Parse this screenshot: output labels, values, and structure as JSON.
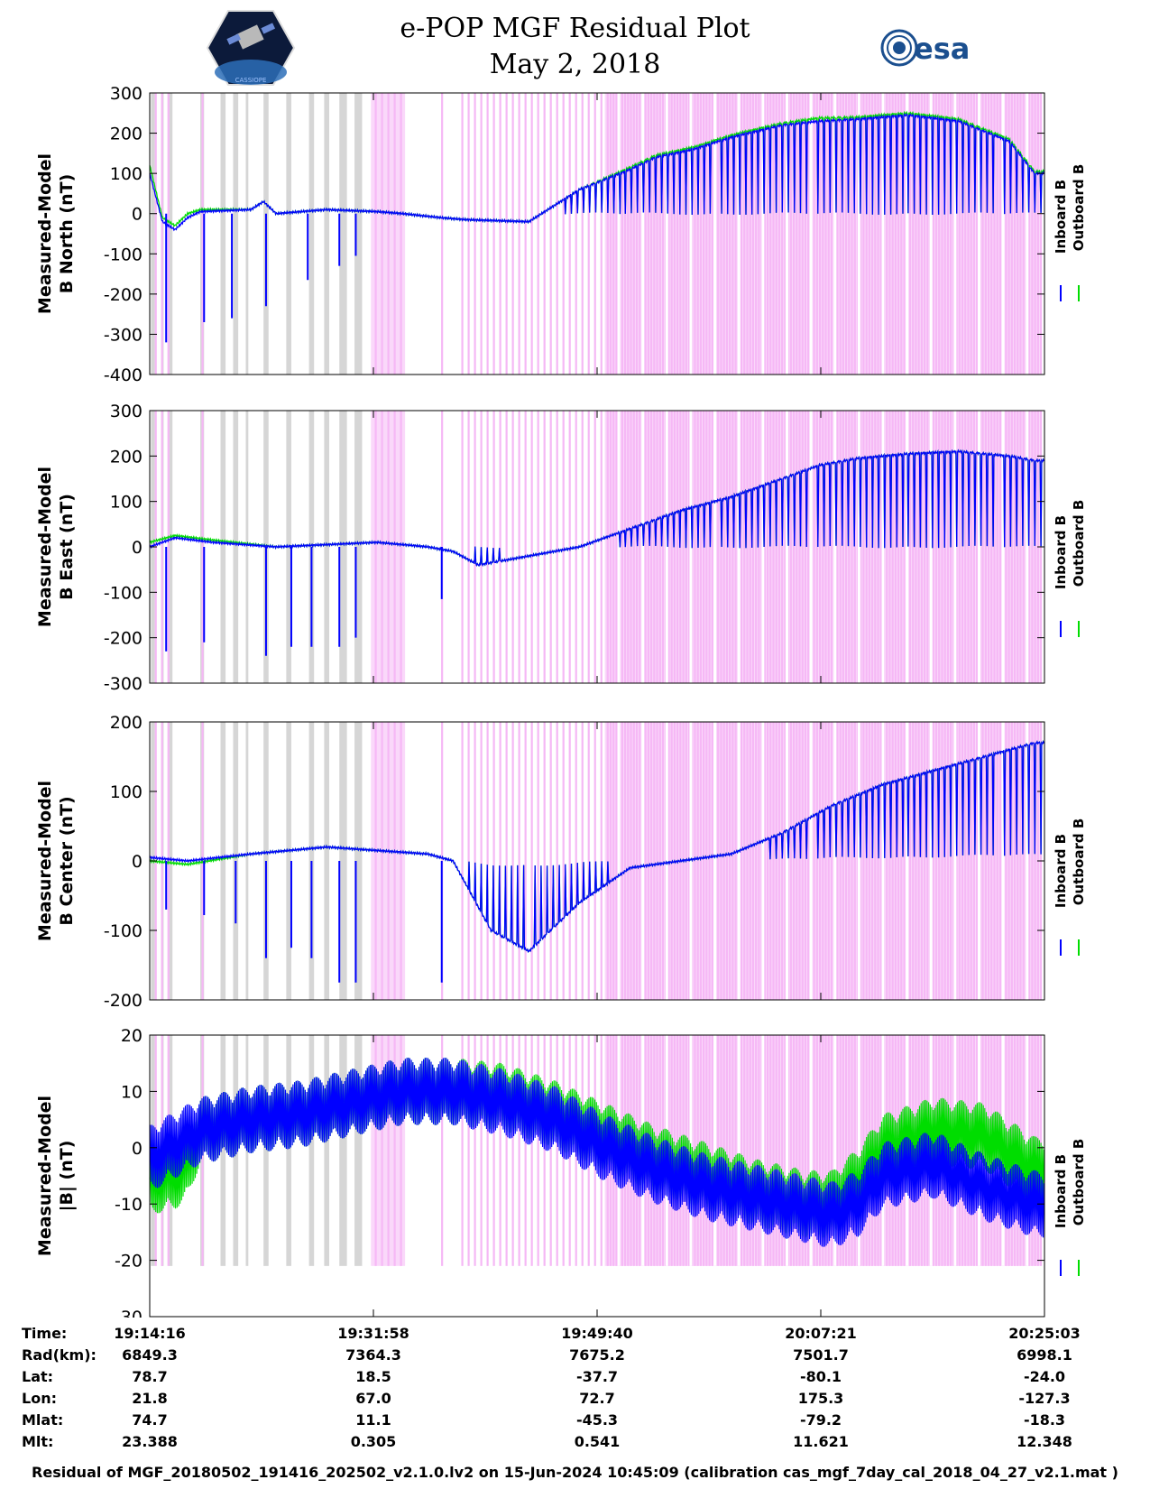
{
  "header": {
    "title": "e-POP MGF Residual Plot",
    "date": "May 2, 2018",
    "logo_left_text": "CASSIOPE",
    "logo_right_text": "esa"
  },
  "colors": {
    "inboard": "#0000ff",
    "outboard": "#00dd00",
    "pink_band": "#f5b8f5",
    "gray_band": "#d6d6d6"
  },
  "legend": {
    "inboard": "Inboard B",
    "outboard": "Outboard B"
  },
  "chart_data": [
    {
      "type": "line",
      "ylabel": [
        "Measured-Model",
        "B North (nT)"
      ],
      "ylim": [
        -400,
        300
      ],
      "yticks": [
        300,
        200,
        100,
        0,
        -100,
        -200,
        -300,
        -400
      ],
      "xlabel": "",
      "x_ticks": [
        "19:14:16",
        "19:31:58",
        "19:49:40",
        "20:07:21",
        "20:25:03"
      ],
      "series": [
        {
          "name": "Inboard B",
          "x_minutes": [
            0,
            1,
            2,
            3,
            4,
            8,
            9,
            10,
            14,
            18,
            20,
            23,
            25,
            30,
            34,
            38,
            40,
            43,
            46,
            50,
            53,
            56,
            60,
            64,
            68,
            70
          ],
          "values": [
            100,
            -20,
            -40,
            -10,
            5,
            10,
            30,
            0,
            10,
            5,
            0,
            -10,
            -15,
            -20,
            60,
            110,
            140,
            160,
            190,
            220,
            230,
            235,
            245,
            230,
            180,
            100
          ]
        },
        {
          "name": "Outboard B",
          "x_minutes": [
            0,
            1,
            2,
            3,
            4,
            8,
            9,
            10,
            14,
            18,
            20,
            23,
            25,
            30,
            34,
            38,
            40,
            43,
            46,
            50,
            53,
            56,
            60,
            64,
            68,
            70
          ],
          "values": [
            120,
            -10,
            -30,
            0,
            10,
            10,
            30,
            0,
            10,
            5,
            0,
            -10,
            -15,
            -20,
            60,
            115,
            145,
            165,
            195,
            225,
            238,
            240,
            250,
            235,
            185,
            105
          ]
        }
      ],
      "dips": [
        {
          "x_minutes": 1.3,
          "value": -320
        },
        {
          "x_minutes": 4.3,
          "value": -270
        },
        {
          "x_minutes": 6.5,
          "value": -260
        },
        {
          "x_minutes": 9.2,
          "value": -230
        },
        {
          "x_minutes": 12.5,
          "value": -165
        },
        {
          "x_minutes": 15,
          "value": -130
        },
        {
          "x_minutes": 16.3,
          "value": -105
        }
      ]
    },
    {
      "type": "line",
      "ylabel": [
        "Measured-Model",
        "B East (nT)"
      ],
      "ylim": [
        -300,
        300
      ],
      "yticks": [
        300,
        200,
        100,
        0,
        -100,
        -200,
        -300
      ],
      "xlabel": "",
      "x_ticks": [
        "19:14:16",
        "19:31:58",
        "19:49:40",
        "20:07:21",
        "20:25:03"
      ],
      "series": [
        {
          "name": "Inboard B",
          "x_minutes": [
            0,
            2,
            5,
            10,
            18,
            22,
            24,
            26,
            30,
            34,
            38,
            42,
            46,
            50,
            53,
            56,
            60,
            64,
            68,
            70
          ],
          "values": [
            0,
            20,
            10,
            0,
            10,
            0,
            -10,
            -40,
            -20,
            0,
            40,
            80,
            110,
            150,
            180,
            195,
            205,
            210,
            200,
            190
          ]
        },
        {
          "name": "Outboard B",
          "x_minutes": [
            0,
            2,
            5,
            10,
            18,
            22,
            24,
            26,
            30,
            34,
            38,
            42,
            46,
            50,
            53,
            56,
            60,
            64,
            68,
            70
          ],
          "values": [
            10,
            25,
            15,
            0,
            10,
            0,
            -10,
            -40,
            -20,
            0,
            40,
            80,
            110,
            150,
            180,
            195,
            205,
            210,
            200,
            190
          ]
        }
      ],
      "dips": [
        {
          "x_minutes": 1.3,
          "value": -230
        },
        {
          "x_minutes": 4.3,
          "value": -210
        },
        {
          "x_minutes": 9.2,
          "value": -240
        },
        {
          "x_minutes": 11.2,
          "value": -220
        },
        {
          "x_minutes": 12.8,
          "value": -220
        },
        {
          "x_minutes": 15,
          "value": -220
        },
        {
          "x_minutes": 16.3,
          "value": -200
        },
        {
          "x_minutes": 23.1,
          "value": -115
        }
      ]
    },
    {
      "type": "line",
      "ylabel": [
        "Measured-Model",
        "B Center (nT)"
      ],
      "ylim": [
        -200,
        200
      ],
      "yticks": [
        200,
        100,
        0,
        -100,
        -200
      ],
      "xlabel": "",
      "x_ticks": [
        "19:14:16",
        "19:31:58",
        "19:49:40",
        "20:07:21",
        "20:25:03"
      ],
      "series": [
        {
          "name": "Inboard B",
          "x_minutes": [
            0,
            3,
            8,
            14,
            18,
            22,
            24,
            27,
            30,
            34,
            38,
            42,
            46,
            50,
            54,
            58,
            62,
            66,
            70
          ],
          "values": [
            5,
            0,
            10,
            20,
            15,
            10,
            0,
            -100,
            -130,
            -60,
            -10,
            0,
            10,
            40,
            80,
            110,
            130,
            150,
            170
          ]
        },
        {
          "name": "Outboard B",
          "x_minutes": [
            0,
            3,
            8,
            14,
            18,
            22,
            24,
            27,
            30,
            34,
            38,
            42,
            46,
            50,
            54,
            58,
            62,
            66,
            70
          ],
          "values": [
            0,
            -5,
            10,
            20,
            15,
            10,
            0,
            -100,
            -130,
            -60,
            -10,
            0,
            10,
            40,
            80,
            110,
            130,
            150,
            170
          ]
        }
      ],
      "dips": [
        {
          "x_minutes": 1.3,
          "value": -70
        },
        {
          "x_minutes": 4.3,
          "value": -78
        },
        {
          "x_minutes": 6.8,
          "value": -90
        },
        {
          "x_minutes": 9.2,
          "value": -140
        },
        {
          "x_minutes": 11.2,
          "value": -125
        },
        {
          "x_minutes": 12.8,
          "value": -140
        },
        {
          "x_minutes": 15,
          "value": -175
        },
        {
          "x_minutes": 16.3,
          "value": -175
        },
        {
          "x_minutes": 23.1,
          "value": -175
        }
      ]
    },
    {
      "type": "line",
      "ylabel": [
        "Measured-Model",
        "|B| (nT)"
      ],
      "ylim": [
        -30,
        20
      ],
      "yticks": [
        20,
        10,
        0,
        -10,
        -20,
        -30
      ],
      "xlabel": "",
      "x_ticks": [
        "19:14:16",
        "19:31:58",
        "19:49:40",
        "20:07:21",
        "20:25:03"
      ],
      "series": [
        {
          "name": "Inboard B",
          "x_minutes": [
            0,
            4,
            8,
            12,
            16,
            20,
            24,
            28,
            32,
            36,
            40,
            44,
            48,
            52,
            54,
            56,
            58,
            62,
            66,
            70
          ],
          "values": [
            -2,
            3,
            5,
            6,
            8,
            10,
            10,
            8,
            5,
            0,
            -4,
            -7,
            -9,
            -11,
            -12,
            -10,
            -5,
            -3,
            -7,
            -10
          ]
        },
        {
          "name": "Outboard B",
          "x_minutes": [
            0,
            2,
            3,
            4,
            8,
            12,
            16,
            20,
            24,
            28,
            32,
            36,
            40,
            44,
            48,
            52,
            54,
            56,
            58,
            62,
            66,
            70
          ],
          "values": [
            -6,
            -5,
            -3,
            3,
            5,
            6,
            8,
            10,
            10,
            9,
            6,
            2,
            -2,
            -5,
            -8,
            -10,
            -10,
            -6,
            0,
            3,
            2,
            -4
          ]
        }
      ],
      "band_halfwidth": 6,
      "dips": []
    }
  ],
  "ephemeris": {
    "row_labels": [
      "Time:",
      "Rad(km):",
      "Lat:",
      "Lon:",
      "Mlat:",
      "Mlt:"
    ],
    "columns": [
      [
        "19:14:16",
        "6849.3",
        "78.7",
        "21.8",
        "74.7",
        "23.388"
      ],
      [
        "19:31:58",
        "7364.3",
        "18.5",
        "67.0",
        "11.1",
        "0.305"
      ],
      [
        "19:49:40",
        "7675.2",
        "-37.7",
        "72.7",
        "-45.3",
        "0.541"
      ],
      [
        "20:07:21",
        "7501.7",
        "-80.1",
        "175.3",
        "-79.2",
        "11.621"
      ],
      [
        "20:25:03",
        "6998.1",
        "-24.0",
        "-127.3",
        "-18.3",
        "12.348"
      ]
    ]
  },
  "footer": "Residual of MGF_20180502_191416_202502_v2.1.0.lv2 on 15-Jun-2024 10:45:09 (calibration cas_mgf_7day_cal_2018_04_27_v2.1.mat )"
}
